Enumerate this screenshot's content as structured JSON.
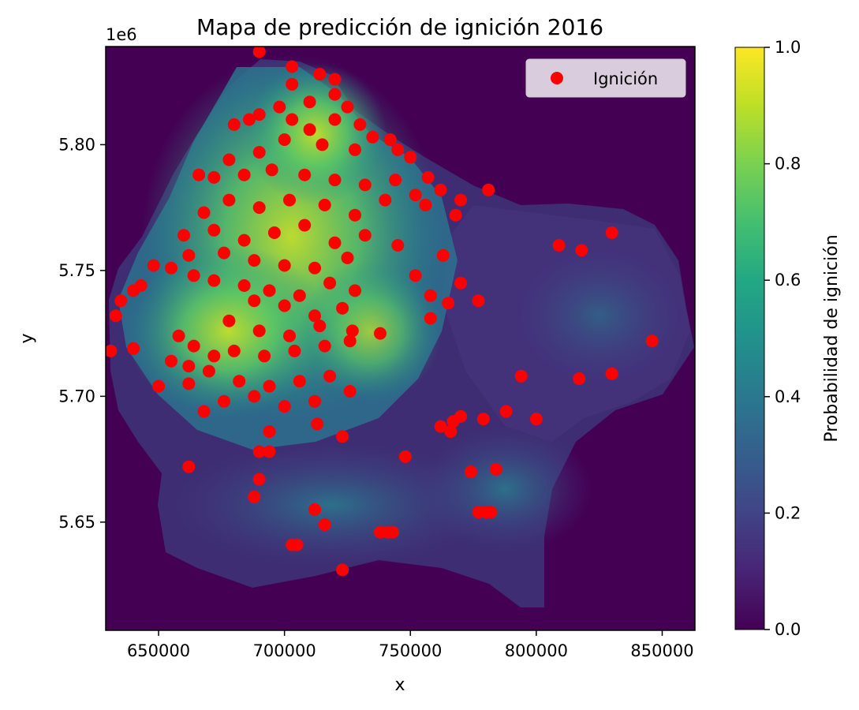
{
  "chart_data": {
    "type": "heatmap+scatter",
    "title": "Mapa de predicción de ignición 2016",
    "xlabel": "x",
    "ylabel": "y",
    "y_offset_label": "1e6",
    "xlim": [
      629000,
      863000
    ],
    "ylim": [
      5607000,
      5839000
    ],
    "x_ticks": [
      650000,
      700000,
      750000,
      800000,
      850000
    ],
    "x_tick_labels": [
      "650000",
      "700000",
      "750000",
      "800000",
      "850000"
    ],
    "y_ticks": [
      5650000,
      5700000,
      5750000,
      5800000
    ],
    "y_tick_labels": [
      "5.65",
      "5.70",
      "5.75",
      "5.80"
    ],
    "colorbar": {
      "label": "Probabilidad de ignición",
      "colormap": "viridis",
      "range": [
        0.0,
        1.0
      ],
      "ticks": [
        "0.0",
        "0.2",
        "0.4",
        "0.6",
        "0.8",
        "1.0"
      ]
    },
    "legend": {
      "position": "top-right",
      "entries": [
        "Ignición"
      ]
    },
    "marker_color": "#ff0000",
    "background_color": "#440154",
    "series": [
      {
        "name": "Ignición",
        "points": [
          [
            690000,
            5837000
          ],
          [
            703000,
            5831000
          ],
          [
            714000,
            5828000
          ],
          [
            720000,
            5826000
          ],
          [
            703000,
            5824000
          ],
          [
            720000,
            5820000
          ],
          [
            725000,
            5815000
          ],
          [
            710000,
            5817000
          ],
          [
            698000,
            5815000
          ],
          [
            680000,
            5808000
          ],
          [
            686000,
            5810000
          ],
          [
            690000,
            5812000
          ],
          [
            703000,
            5810000
          ],
          [
            710000,
            5806000
          ],
          [
            720000,
            5810000
          ],
          [
            730000,
            5808000
          ],
          [
            735000,
            5803000
          ],
          [
            742000,
            5802000
          ],
          [
            745000,
            5798000
          ],
          [
            750000,
            5795000
          ],
          [
            728000,
            5798000
          ],
          [
            715000,
            5800000
          ],
          [
            700000,
            5802000
          ],
          [
            690000,
            5797000
          ],
          [
            678000,
            5794000
          ],
          [
            666000,
            5788000
          ],
          [
            672000,
            5787000
          ],
          [
            684000,
            5788000
          ],
          [
            695000,
            5790000
          ],
          [
            708000,
            5788000
          ],
          [
            720000,
            5786000
          ],
          [
            732000,
            5784000
          ],
          [
            744000,
            5786000
          ],
          [
            752000,
            5780000
          ],
          [
            757000,
            5787000
          ],
          [
            762000,
            5782000
          ],
          [
            770000,
            5778000
          ],
          [
            781000,
            5782000
          ],
          [
            768000,
            5772000
          ],
          [
            756000,
            5776000
          ],
          [
            740000,
            5778000
          ],
          [
            728000,
            5772000
          ],
          [
            716000,
            5776000
          ],
          [
            702000,
            5778000
          ],
          [
            690000,
            5775000
          ],
          [
            678000,
            5778000
          ],
          [
            668000,
            5773000
          ],
          [
            660000,
            5764000
          ],
          [
            672000,
            5766000
          ],
          [
            684000,
            5762000
          ],
          [
            696000,
            5765000
          ],
          [
            708000,
            5768000
          ],
          [
            720000,
            5761000
          ],
          [
            732000,
            5764000
          ],
          [
            745000,
            5760000
          ],
          [
            662000,
            5756000
          ],
          [
            676000,
            5757000
          ],
          [
            688000,
            5754000
          ],
          [
            700000,
            5752000
          ],
          [
            712000,
            5751000
          ],
          [
            725000,
            5755000
          ],
          [
            752000,
            5748000
          ],
          [
            763000,
            5756000
          ],
          [
            648000,
            5752000
          ],
          [
            655000,
            5751000
          ],
          [
            664000,
            5748000
          ],
          [
            672000,
            5746000
          ],
          [
            684000,
            5744000
          ],
          [
            694000,
            5742000
          ],
          [
            706000,
            5740000
          ],
          [
            718000,
            5745000
          ],
          [
            728000,
            5742000
          ],
          [
            640000,
            5742000
          ],
          [
            635000,
            5738000
          ],
          [
            633000,
            5732000
          ],
          [
            643000,
            5744000
          ],
          [
            688000,
            5738000
          ],
          [
            700000,
            5736000
          ],
          [
            712000,
            5732000
          ],
          [
            723000,
            5735000
          ],
          [
            758000,
            5740000
          ],
          [
            765000,
            5737000
          ],
          [
            770000,
            5745000
          ],
          [
            777000,
            5738000
          ],
          [
            758000,
            5731000
          ],
          [
            678000,
            5730000
          ],
          [
            690000,
            5726000
          ],
          [
            702000,
            5724000
          ],
          [
            714000,
            5728000
          ],
          [
            727000,
            5726000
          ],
          [
            738000,
            5725000
          ],
          [
            658000,
            5724000
          ],
          [
            664000,
            5720000
          ],
          [
            672000,
            5716000
          ],
          [
            680000,
            5718000
          ],
          [
            692000,
            5716000
          ],
          [
            704000,
            5718000
          ],
          [
            716000,
            5720000
          ],
          [
            726000,
            5722000
          ],
          [
            640000,
            5719000
          ],
          [
            631000,
            5718000
          ],
          [
            655000,
            5714000
          ],
          [
            662000,
            5712000
          ],
          [
            670000,
            5710000
          ],
          [
            682000,
            5706000
          ],
          [
            694000,
            5704000
          ],
          [
            706000,
            5706000
          ],
          [
            718000,
            5708000
          ],
          [
            650000,
            5704000
          ],
          [
            662000,
            5705000
          ],
          [
            676000,
            5698000
          ],
          [
            688000,
            5700000
          ],
          [
            700000,
            5696000
          ],
          [
            712000,
            5698000
          ],
          [
            726000,
            5702000
          ],
          [
            668000,
            5694000
          ],
          [
            694000,
            5686000
          ],
          [
            713000,
            5689000
          ],
          [
            723000,
            5684000
          ],
          [
            690000,
            5678000
          ],
          [
            694000,
            5678000
          ],
          [
            690000,
            5667000
          ],
          [
            662000,
            5672000
          ],
          [
            748000,
            5676000
          ],
          [
            809000,
            5760000
          ],
          [
            818000,
            5758000
          ],
          [
            830000,
            5765000
          ],
          [
            846000,
            5722000
          ],
          [
            830000,
            5709000
          ],
          [
            817000,
            5707000
          ],
          [
            794000,
            5708000
          ],
          [
            788000,
            5694000
          ],
          [
            779000,
            5691000
          ],
          [
            800000,
            5691000
          ],
          [
            770000,
            5692000
          ],
          [
            767000,
            5690000
          ],
          [
            766000,
            5686000
          ],
          [
            762000,
            5688000
          ],
          [
            774000,
            5670000
          ],
          [
            784000,
            5671000
          ],
          [
            777000,
            5654000
          ],
          [
            780000,
            5654000
          ],
          [
            782000,
            5654000
          ],
          [
            688000,
            5660000
          ],
          [
            712000,
            5655000
          ],
          [
            716000,
            5649000
          ],
          [
            738000,
            5646000
          ],
          [
            741000,
            5646000
          ],
          [
            743000,
            5646000
          ],
          [
            703000,
            5641000
          ],
          [
            705000,
            5641000
          ],
          [
            723000,
            5631000
          ]
        ]
      }
    ]
  }
}
